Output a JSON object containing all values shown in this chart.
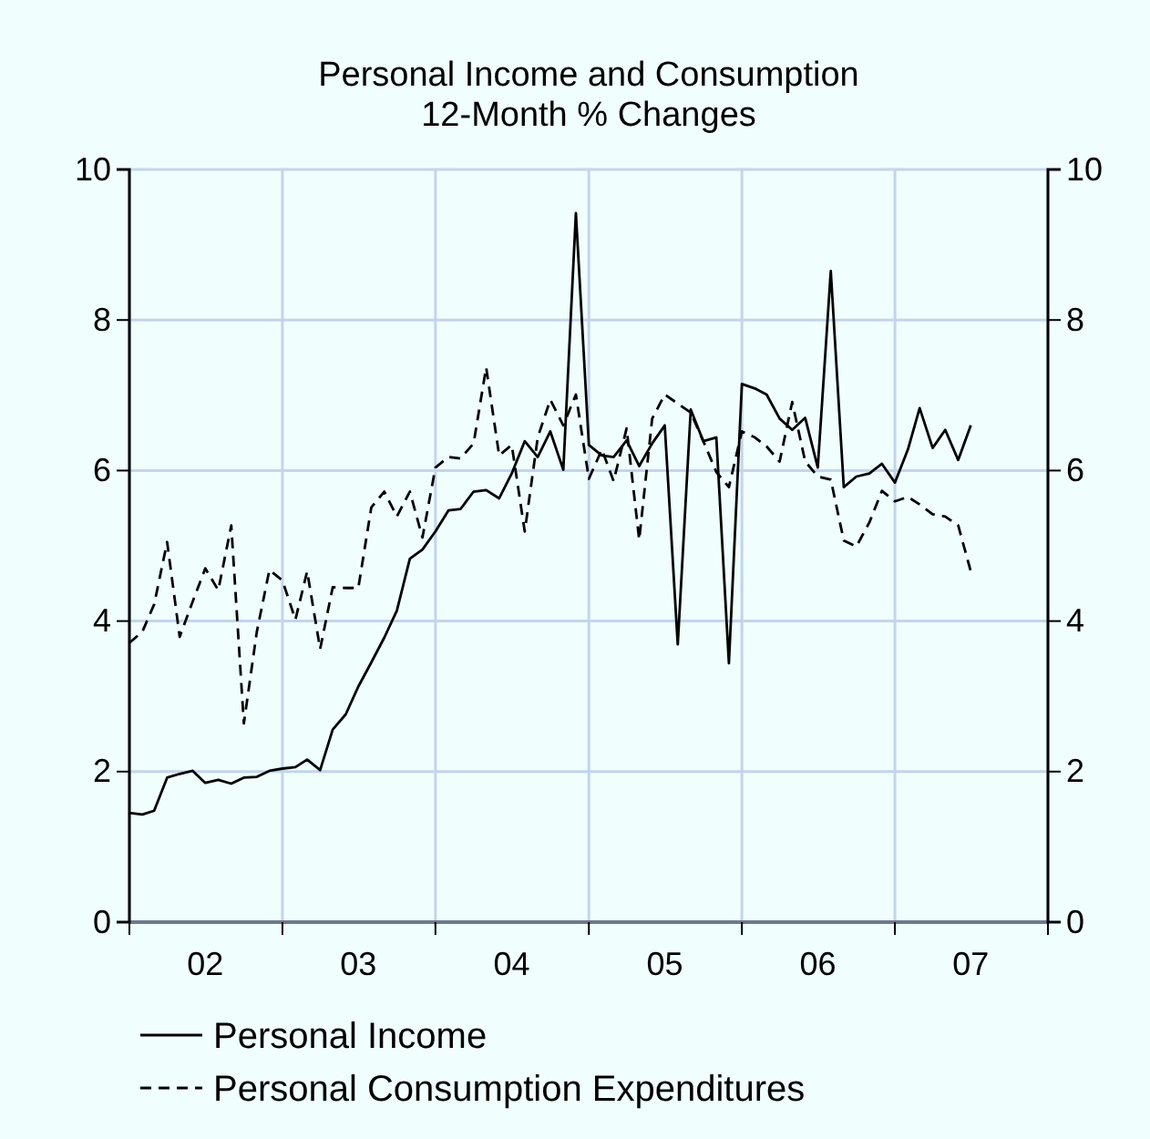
{
  "chart_data": {
    "type": "line",
    "title": "Personal Income and Consumption",
    "subtitle": "12-Month % Changes",
    "x": [
      "2002-01",
      "2002-02",
      "2002-03",
      "2002-04",
      "2002-05",
      "2002-06",
      "2002-07",
      "2002-08",
      "2002-09",
      "2002-10",
      "2002-11",
      "2002-12",
      "2003-01",
      "2003-02",
      "2003-03",
      "2003-04",
      "2003-05",
      "2003-06",
      "2003-07",
      "2003-08",
      "2003-09",
      "2003-10",
      "2003-11",
      "2003-12",
      "2004-01",
      "2004-02",
      "2004-03",
      "2004-04",
      "2004-05",
      "2004-06",
      "2004-07",
      "2004-08",
      "2004-09",
      "2004-10",
      "2004-11",
      "2004-12",
      "2005-01",
      "2005-02",
      "2005-03",
      "2005-04",
      "2005-05",
      "2005-06",
      "2005-07",
      "2005-08",
      "2005-09",
      "2005-10",
      "2005-11",
      "2005-12",
      "2006-01",
      "2006-02",
      "2006-03",
      "2006-04",
      "2006-05",
      "2006-06",
      "2006-07",
      "2006-08",
      "2006-09",
      "2006-10",
      "2006-11",
      "2006-12",
      "2007-01",
      "2007-02",
      "2007-03",
      "2007-04",
      "2007-05",
      "2007-06",
      "2007-07"
    ],
    "series": [
      {
        "name": "Personal Income",
        "color": "#000000",
        "line_style": "solid",
        "values": [
          1.45,
          1.43,
          1.48,
          1.92,
          1.97,
          2.01,
          1.85,
          1.89,
          1.84,
          1.92,
          1.93,
          2.01,
          2.04,
          2.06,
          2.16,
          2.02,
          2.56,
          2.76,
          3.13,
          3.45,
          3.78,
          4.14,
          4.83,
          4.95,
          5.19,
          5.47,
          5.49,
          5.72,
          5.74,
          5.63,
          5.96,
          6.39,
          6.18,
          6.52,
          6.01,
          9.42,
          6.34,
          6.2,
          6.18,
          6.4,
          6.06,
          6.36,
          6.6,
          3.69,
          6.81,
          6.39,
          6.44,
          3.44,
          7.15,
          7.09,
          7.01,
          6.69,
          6.54,
          6.7,
          6.04,
          8.65,
          5.78,
          5.92,
          5.96,
          6.09,
          5.84,
          6.28,
          6.83,
          6.3,
          6.54,
          6.14,
          6.6
        ]
      },
      {
        "name": "Personal Consumption Expenditures",
        "color": "#000000",
        "line_style": "dashed",
        "values": [
          3.71,
          3.86,
          4.22,
          5.05,
          3.79,
          4.26,
          4.7,
          4.41,
          5.27,
          2.64,
          3.86,
          4.68,
          4.54,
          4.02,
          4.66,
          3.63,
          4.45,
          4.44,
          4.44,
          5.51,
          5.72,
          5.39,
          5.72,
          5.11,
          6.04,
          6.18,
          6.16,
          6.36,
          7.37,
          6.2,
          6.34,
          5.19,
          6.44,
          6.94,
          6.6,
          7.01,
          5.89,
          6.28,
          5.86,
          6.56,
          5.08,
          6.69,
          7.01,
          6.89,
          6.77,
          6.39,
          5.98,
          5.78,
          6.52,
          6.44,
          6.32,
          6.12,
          6.91,
          6.12,
          5.92,
          5.88,
          5.07,
          4.99,
          5.31,
          5.73,
          5.59,
          5.65,
          5.55,
          5.42,
          5.39,
          5.27,
          4.66
        ]
      }
    ],
    "xlim": [
      "2002-01",
      "2008-01"
    ],
    "xticks": [
      {
        "value": "2002-01",
        "label": null
      },
      {
        "value": "2003-01",
        "label": null
      },
      {
        "value": "2004-01",
        "label": null
      },
      {
        "value": "2005-01",
        "label": null
      },
      {
        "value": "2006-01",
        "label": null
      },
      {
        "value": "2007-01",
        "label": null
      },
      {
        "value": "2008-01",
        "label": null
      },
      {
        "value": "2002-07",
        "label": "02"
      },
      {
        "value": "2003-07",
        "label": "03"
      },
      {
        "value": "2004-07",
        "label": "04"
      },
      {
        "value": "2005-07",
        "label": "05"
      },
      {
        "value": "2006-07",
        "label": "06"
      },
      {
        "value": "2007-07",
        "label": "07"
      }
    ],
    "ylim": [
      0,
      10
    ],
    "yticks": [
      0,
      2,
      4,
      6,
      8,
      10
    ],
    "y2lim": [
      0,
      10
    ],
    "y2ticks": [
      0,
      2,
      4,
      6,
      8,
      10
    ],
    "grid": true,
    "legend": "bottom"
  }
}
